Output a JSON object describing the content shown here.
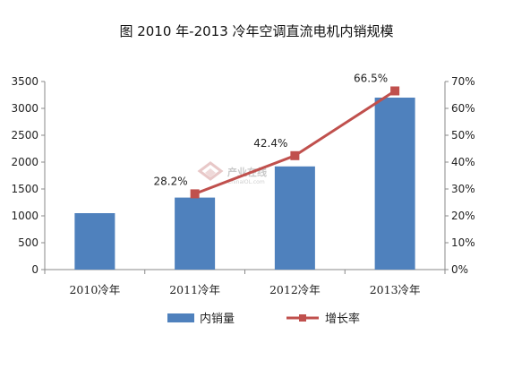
{
  "chart_data": {
    "type": "bar",
    "title": "图  2010 年-2013 冷年空调直流电机内销规模",
    "categories": [
      "2010冷年",
      "2011冷年",
      "2012冷年",
      "2013冷年"
    ],
    "series": [
      {
        "name": "内销量",
        "kind": "bar",
        "axis": "left",
        "color": "#4f81bd",
        "values": [
          1050,
          1340,
          1920,
          3200
        ]
      },
      {
        "name": "增长率",
        "kind": "line",
        "axis": "right",
        "color": "#c0504d",
        "values": [
          null,
          28.2,
          42.4,
          66.5
        ],
        "labels": [
          "",
          "28.2%",
          "42.4%",
          "66.5%"
        ]
      }
    ],
    "y_left": {
      "min": 0,
      "max": 3500,
      "step": 500,
      "ticks": [
        "0",
        "500",
        "1000",
        "1500",
        "2000",
        "2500",
        "3000",
        "3500"
      ]
    },
    "y_right": {
      "min": 0,
      "max": 70,
      "step": 10,
      "ticks": [
        "0%",
        "10%",
        "20%",
        "30%",
        "40%",
        "50%",
        "60%",
        "70%"
      ]
    },
    "grid": false,
    "legend": "bottom",
    "watermark": {
      "text": "产业在线",
      "sub": "ChinaIOL.com"
    }
  }
}
